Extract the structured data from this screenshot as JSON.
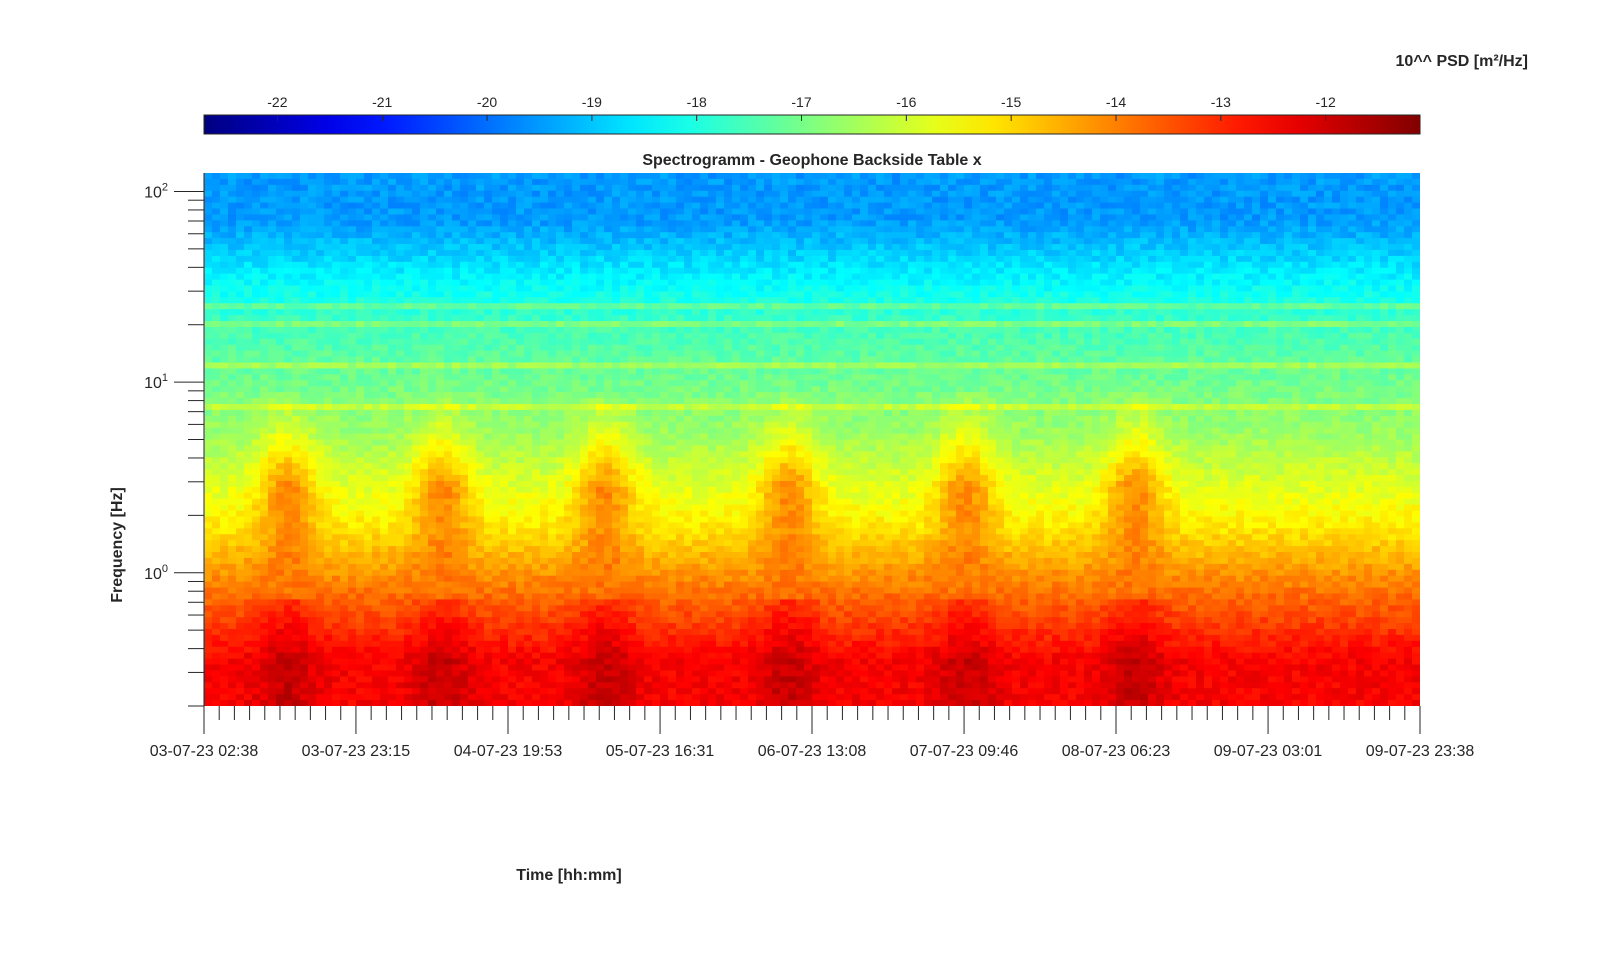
{
  "chart_data": {
    "type": "heatmap",
    "title": "Spectrogramm - Geophone Backside Table x",
    "xlabel": "Time [hh:mm]",
    "ylabel": "Frequency [Hz]",
    "colorbar_label": "10^^ PSD [m²/Hz]",
    "colormap": "jet",
    "colorbar_range": [
      -22.7,
      -11.1
    ],
    "colorbar_ticks": [
      "-22",
      "-21",
      "-20",
      "-19",
      "-18",
      "-17",
      "-16",
      "-15",
      "-14",
      "-13",
      "-12"
    ],
    "colorbar_tick_values": [
      -22,
      -21,
      -20,
      -19,
      -18,
      -17,
      -16,
      -15,
      -14,
      -13,
      -12
    ],
    "colorbar_position": "top",
    "x_tick_labels": [
      "03-07-23 02:38",
      "03-07-23 23:15",
      "04-07-23 19:53",
      "05-07-23 16:31",
      "06-07-23 13:08",
      "07-07-23 09:46",
      "08-07-23 06:23",
      "09-07-23 03:01",
      "09-07-23 23:38"
    ],
    "xlim": [
      "03-07-23 02:38",
      "09-07-23 23:38"
    ],
    "y_scale": "log",
    "ylim": [
      0.2,
      125
    ],
    "y_tick_values": [
      1,
      10,
      100
    ],
    "y_tick_labels": [
      {
        "base": "10",
        "exp": "0"
      },
      {
        "base": "10",
        "exp": "1"
      },
      {
        "base": "10",
        "exp": "2"
      }
    ],
    "grid": false,
    "level_bands": [
      {
        "f_min": 0.2,
        "f_max": 0.6,
        "log_psd": -12.5
      },
      {
        "f_min": 0.6,
        "f_max": 1.0,
        "log_psd": -13.8
      },
      {
        "f_min": 1.0,
        "f_max": 3.0,
        "log_psd": -15.2
      },
      {
        "f_min": 3.0,
        "f_max": 10,
        "log_psd": -16.6
      },
      {
        "f_min": 10,
        "f_max": 40,
        "log_psd": -17.6
      },
      {
        "f_min": 40,
        "f_max": 125,
        "log_psd": -19.5
      }
    ],
    "persistent_lines_hz": [
      7.5,
      12.5,
      20,
      25,
      30
    ],
    "daily_activity_peaks": [
      "03-07-23 14:00",
      "04-07-23 11:00",
      "05-07-23 09:00",
      "06-07-23 10:00",
      "07-07-23 10:00",
      "08-07-23 09:00"
    ]
  }
}
